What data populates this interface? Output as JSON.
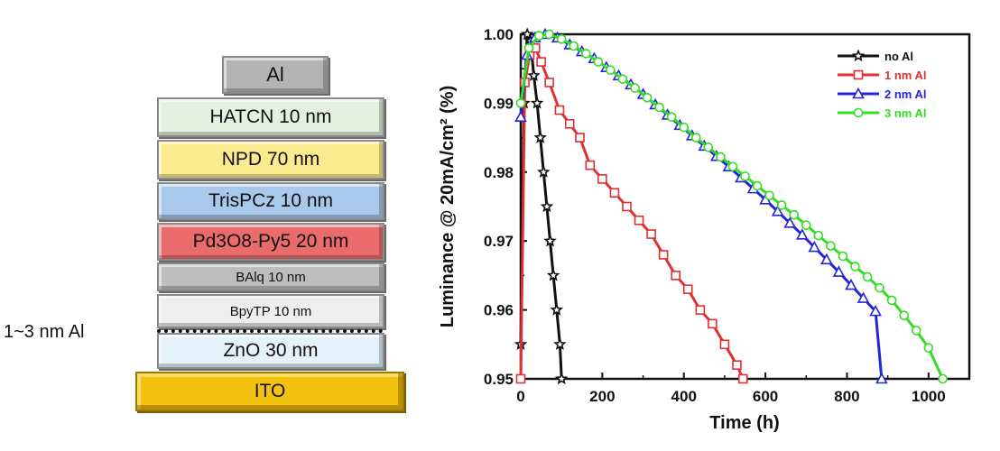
{
  "layers": [
    {
      "label": "Al",
      "color": "#b4b4b4"
    },
    {
      "label": "HATCN 10 nm",
      "color": "#e4f1de"
    },
    {
      "label": "NPD 70 nm",
      "color": "#fbeb8f"
    },
    {
      "label": "TrisPCz 10 nm",
      "color": "#a8c9ec"
    },
    {
      "label": "Pd3O8-Py5 20 nm",
      "color": "#ea6b6b"
    },
    {
      "label": "BAlq 10 nm",
      "color": "#bdbdbd"
    },
    {
      "label": "BpyTP 10 nm",
      "color": "#eeeeee"
    },
    {
      "label": "ZnO 30 nm",
      "color": "#e4f2fb"
    },
    {
      "label": "ITO",
      "color": "#f3c20e"
    }
  ],
  "interlayer_label": "1~3 nm Al",
  "chart_data": {
    "type": "line",
    "title": "",
    "xlabel": "Time (h)",
    "ylabel": "Luminance @ 20mA/cm² (%)",
    "xlim": [
      0,
      1100
    ],
    "ylim": [
      0.95,
      1.0
    ],
    "xticks": [
      "0",
      "200",
      "400",
      "600",
      "800",
      "1000"
    ],
    "yticks": [
      "0.95",
      "0.96",
      "0.97",
      "0.98",
      "0.99",
      "1.00"
    ],
    "legend_position": "top-right",
    "series": [
      {
        "name": "no Al",
        "color": "#111111",
        "marker": "star",
        "x": [
          0,
          8,
          16,
          24,
          32,
          40,
          48,
          56,
          64,
          72,
          80,
          88,
          96,
          100
        ],
        "y": [
          0.955,
          0.99,
          1.0,
          0.999,
          0.994,
          0.99,
          0.985,
          0.98,
          0.975,
          0.97,
          0.965,
          0.96,
          0.955,
          0.95
        ]
      },
      {
        "name": "1 nm Al",
        "color": "#e03030",
        "marker": "square",
        "x": [
          0,
          10,
          22,
          36,
          50,
          70,
          95,
          120,
          145,
          170,
          200,
          230,
          260,
          290,
          320,
          350,
          380,
          410,
          440,
          470,
          500,
          530,
          545
        ],
        "y": [
          0.95,
          0.993,
          0.997,
          0.998,
          0.996,
          0.993,
          0.989,
          0.987,
          0.985,
          0.981,
          0.979,
          0.977,
          0.975,
          0.973,
          0.971,
          0.968,
          0.965,
          0.963,
          0.96,
          0.958,
          0.955,
          0.952,
          0.95
        ]
      },
      {
        "name": "2 nm Al",
        "color": "#2424d8",
        "marker": "triangle",
        "x": [
          0,
          15,
          35,
          60,
          90,
          120,
          150,
          180,
          210,
          240,
          270,
          300,
          330,
          360,
          390,
          420,
          450,
          480,
          510,
          540,
          570,
          600,
          630,
          660,
          690,
          720,
          750,
          780,
          810,
          840,
          870,
          885
        ],
        "y": [
          0.988,
          0.997,
          0.9995,
          1.0,
          0.9995,
          0.9985,
          0.9975,
          0.9965,
          0.9952,
          0.994,
          0.9927,
          0.9913,
          0.9898,
          0.9883,
          0.9868,
          0.9853,
          0.9838,
          0.9823,
          0.9808,
          0.9792,
          0.9776,
          0.976,
          0.9743,
          0.9726,
          0.9709,
          0.9691,
          0.9673,
          0.9655,
          0.9636,
          0.9617,
          0.9598,
          0.95
        ]
      },
      {
        "name": "3 nm Al",
        "color": "#33dd22",
        "marker": "circle",
        "x": [
          0,
          20,
          45,
          70,
          100,
          130,
          160,
          190,
          220,
          250,
          280,
          310,
          340,
          370,
          400,
          430,
          460,
          490,
          520,
          550,
          580,
          610,
          640,
          670,
          700,
          730,
          760,
          790,
          820,
          850,
          880,
          910,
          940,
          970,
          1000,
          1035
        ],
        "y": [
          0.99,
          0.998,
          0.9998,
          1.0,
          0.9993,
          0.9983,
          0.9972,
          0.996,
          0.9948,
          0.9935,
          0.9922,
          0.9908,
          0.9894,
          0.988,
          0.9865,
          0.985,
          0.9836,
          0.9822,
          0.9808,
          0.9794,
          0.978,
          0.9766,
          0.9752,
          0.9738,
          0.9723,
          0.9708,
          0.9693,
          0.9678,
          0.9663,
          0.9648,
          0.9632,
          0.9614,
          0.9592,
          0.957,
          0.9545,
          0.95
        ]
      }
    ]
  }
}
